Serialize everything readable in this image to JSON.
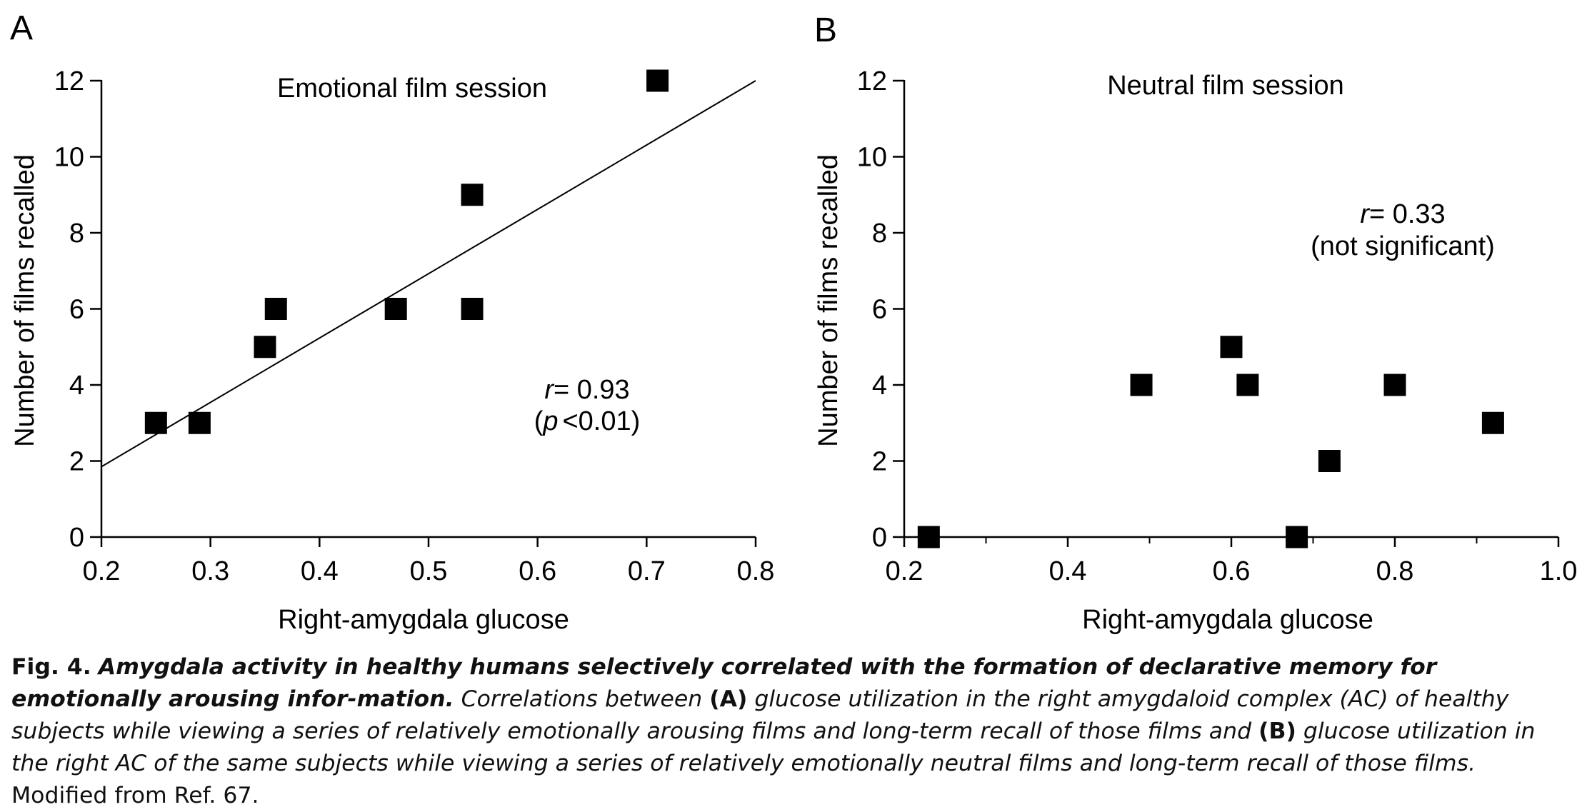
{
  "chart_data": [
    {
      "type": "scatter",
      "panel_label": "A",
      "title": "Emotional film session",
      "xlabel": "Right-amygdala glucose",
      "ylabel": "Number of films recalled",
      "xlim": [
        0.2,
        0.8
      ],
      "ylim": [
        0,
        12
      ],
      "xticks": [
        0.2,
        0.3,
        0.4,
        0.5,
        0.6,
        0.7,
        0.8
      ],
      "xtick_labels": [
        "0.2",
        "0.3",
        "0.4",
        "0.5",
        "0.6",
        "0.7",
        "0.8"
      ],
      "xticks_minor": [],
      "yticks": [
        0,
        2,
        4,
        6,
        8,
        10,
        12
      ],
      "ytick_labels": [
        "0",
        "2",
        "4",
        "6",
        "8",
        "10",
        "12"
      ],
      "grid": false,
      "points": [
        {
          "x": 0.25,
          "y": 3
        },
        {
          "x": 0.29,
          "y": 3
        },
        {
          "x": 0.35,
          "y": 5
        },
        {
          "x": 0.36,
          "y": 6
        },
        {
          "x": 0.47,
          "y": 6
        },
        {
          "x": 0.54,
          "y": 6
        },
        {
          "x": 0.54,
          "y": 9
        },
        {
          "x": 0.71,
          "y": 12
        }
      ],
      "regression_line": {
        "x": [
          0.2,
          0.8
        ],
        "y": [
          1.85,
          12.0
        ]
      },
      "stat_r": "r",
      "stat_r_value": "= 0.93",
      "stat_p_open": "(",
      "stat_p": "p",
      "stat_p_value": "<0.01)"
    },
    {
      "type": "scatter",
      "panel_label": "B",
      "title": "Neutral film session",
      "xlabel": "Right-amygdala glucose",
      "ylabel": "Number of films recalled",
      "xlim": [
        0.2,
        1.0
      ],
      "ylim": [
        0,
        12
      ],
      "xticks": [
        0.2,
        0.4,
        0.6,
        0.8,
        1.0
      ],
      "xtick_labels": [
        "0.2",
        "0.4",
        "0.6",
        "0.8",
        "1.0"
      ],
      "xticks_minor": [
        0.3,
        0.5,
        0.7,
        0.9
      ],
      "yticks": [
        0,
        2,
        4,
        6,
        8,
        10,
        12
      ],
      "ytick_labels": [
        "0",
        "2",
        "4",
        "6",
        "8",
        "10",
        "12"
      ],
      "grid": false,
      "points": [
        {
          "x": 0.23,
          "y": 0
        },
        {
          "x": 0.49,
          "y": 4
        },
        {
          "x": 0.6,
          "y": 5
        },
        {
          "x": 0.62,
          "y": 4
        },
        {
          "x": 0.68,
          "y": 0
        },
        {
          "x": 0.72,
          "y": 2
        },
        {
          "x": 0.8,
          "y": 4
        },
        {
          "x": 0.92,
          "y": 3
        }
      ],
      "stat_r": "r",
      "stat_r_value": "= 0.33",
      "stat_note": "(not significant)"
    }
  ],
  "caption": {
    "fig_label": "Fig. 4.",
    "title": "Amygdala activity in healthy humans selectively correlated with the formation of declarative memory for emotionally arousing infor-mation.",
    "text_1": "Correlations between",
    "label_a": "(A)",
    "text_2": "glucose utilization in the right amygdaloid complex (AC) of healthy subjects while viewing a series of relatively emotionally arousing films and long-term recall of those films and",
    "label_b": "(B)",
    "text_3": "glucose utilization in the right AC of the same subjects while viewing a series of relatively emotionally neutral films and long-term recall of those films.",
    "source": "Modified from Ref. 67."
  }
}
